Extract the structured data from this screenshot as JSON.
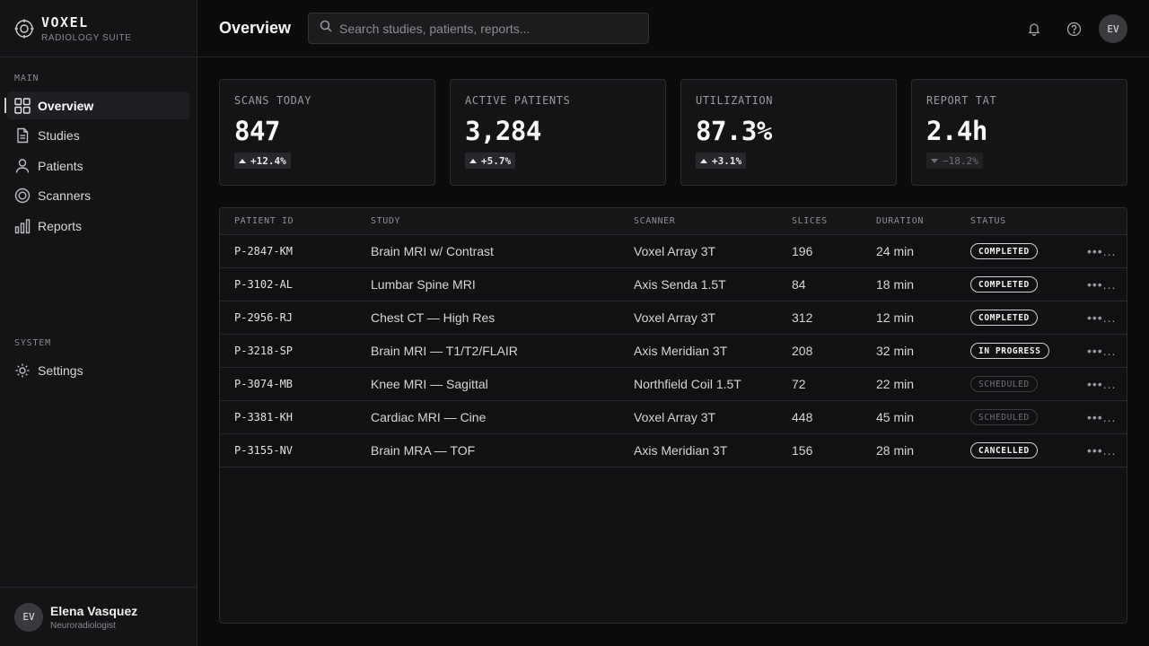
{
  "brand": {
    "name": "VOXEL",
    "subtitle": "RADIOLOGY SUITE",
    "icon": "target-logo-icon"
  },
  "sidebar": {
    "main_label": "MAIN",
    "items": [
      {
        "label": "Overview",
        "icon": "grid-icon",
        "active": true
      },
      {
        "label": "Studies",
        "icon": "document-icon",
        "active": false
      },
      {
        "label": "Patients",
        "icon": "user-icon",
        "active": false
      },
      {
        "label": "Scanners",
        "icon": "scanner-icon",
        "active": false
      },
      {
        "label": "Reports",
        "icon": "bar-chart-icon",
        "active": false
      }
    ],
    "system_label": "SYSTEM",
    "system_items": [
      {
        "label": "Settings",
        "icon": "gear-icon",
        "active": false
      }
    ]
  },
  "user": {
    "initials": "EV",
    "name": "Elena Vasquez",
    "role": "Neuroradiologist"
  },
  "header": {
    "title": "Overview",
    "search_placeholder": "Search studies, patients, reports...",
    "avatar_initials": "EV"
  },
  "stats": [
    {
      "label": "SCANS TODAY",
      "value": "847",
      "delta": "+12.4%",
      "trend": "up"
    },
    {
      "label": "ACTIVE PATIENTS",
      "value": "3,284",
      "delta": "+5.7%",
      "trend": "up"
    },
    {
      "label": "UTILIZATION",
      "value": "87.3%",
      "delta": "+3.1%",
      "trend": "up"
    },
    {
      "label": "REPORT TAT",
      "value": "2.4h",
      "delta": "−18.2%",
      "trend": "down"
    }
  ],
  "table": {
    "columns": [
      "PATIENT ID",
      "STUDY",
      "SCANNER",
      "SLICES",
      "DURATION",
      "STATUS"
    ],
    "rows": [
      {
        "id": "P-2847-KM",
        "study": "Brain MRI w/ Contrast",
        "scanner": "Voxel Array 3T",
        "slices": "196",
        "duration": "24 min",
        "status": "COMPLETED",
        "status_style": "strong",
        "more": "•••..."
      },
      {
        "id": "P-3102-AL",
        "study": "Lumbar Spine MRI",
        "scanner": "Axis Senda 1.5T",
        "slices": "84",
        "duration": "18 min",
        "status": "COMPLETED",
        "status_style": "strong",
        "more": "•••..."
      },
      {
        "id": "P-2956-RJ",
        "study": "Chest CT — High Res",
        "scanner": "Voxel Array 3T",
        "slices": "312",
        "duration": "12 min",
        "status": "COMPLETED",
        "status_style": "strong",
        "more": "•••..."
      },
      {
        "id": "P-3218-SP",
        "study": "Brain MRI — T1/T2/FLAIR",
        "scanner": "Axis Meridian 3T",
        "slices": "208",
        "duration": "32 min",
        "status": "IN PROGRESS",
        "status_style": "strong",
        "more": "•••..."
      },
      {
        "id": "P-3074-MB",
        "study": "Knee MRI — Sagittal",
        "scanner": "Northfield Coil 1.5T",
        "slices": "72",
        "duration": "22 min",
        "status": "SCHEDULED",
        "status_style": "dim",
        "more": "•••..."
      },
      {
        "id": "P-3381-KH",
        "study": "Cardiac MRI — Cine",
        "scanner": "Voxel Array 3T",
        "slices": "448",
        "duration": "45 min",
        "status": "SCHEDULED",
        "status_style": "dim",
        "more": "•••..."
      },
      {
        "id": "P-3155-NV",
        "study": "Brain MRA — TOF",
        "scanner": "Axis Meridian 3T",
        "slices": "156",
        "duration": "28 min",
        "status": "CANCELLED",
        "status_style": "strong",
        "more": "•••..."
      }
    ]
  },
  "colors": {
    "background": "#0b0b0c",
    "panel": "#141416",
    "border": "#26262a",
    "text": "#e8e8e8",
    "muted": "#8a8a90"
  }
}
